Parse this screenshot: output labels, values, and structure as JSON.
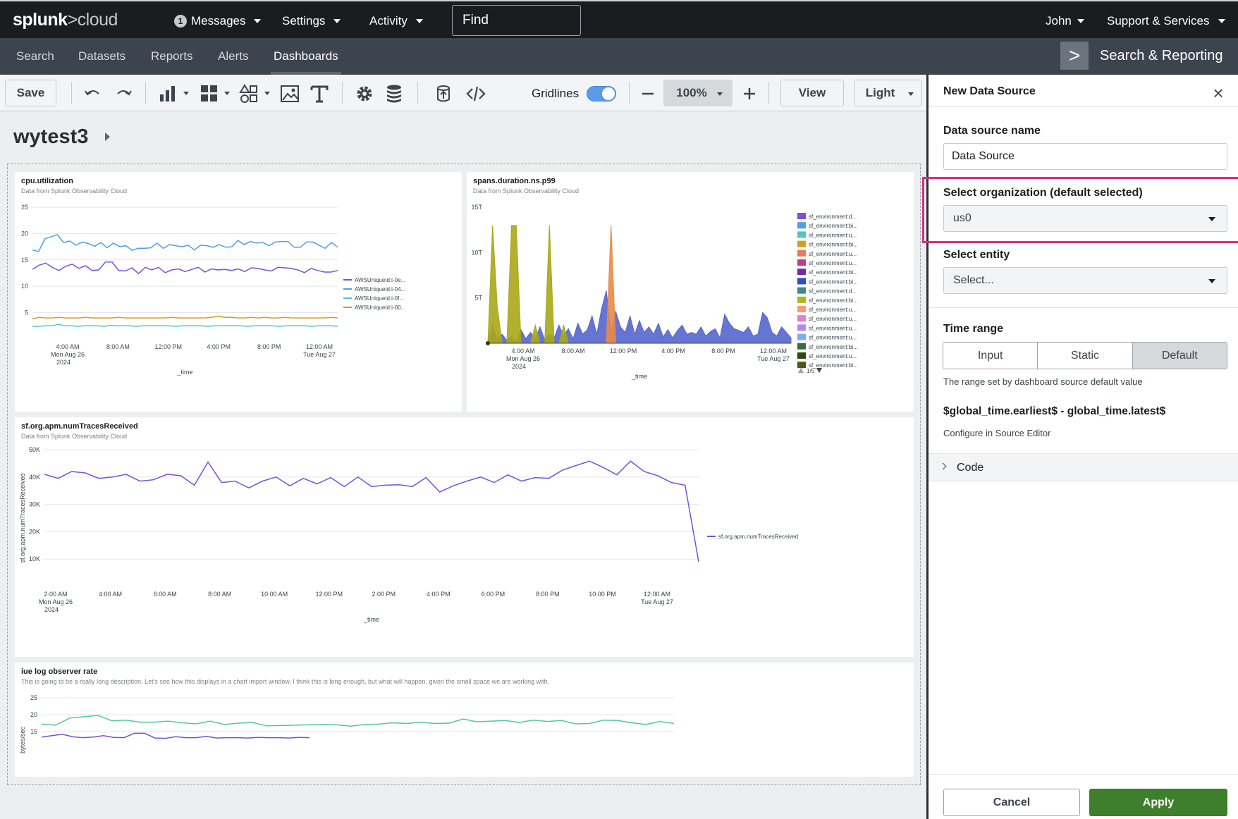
{
  "header": {
    "logo_bold": "splunk",
    "logo_rest": ">cloud",
    "messages_badge": "1",
    "messages": "Messages",
    "settings": "Settings",
    "activity": "Activity",
    "find_placeholder": "Find",
    "user": "John",
    "support": "Support & Services"
  },
  "appbar": {
    "items": [
      {
        "label": "Search"
      },
      {
        "label": "Datasets"
      },
      {
        "label": "Reports"
      },
      {
        "label": "Alerts"
      },
      {
        "label": "Dashboards"
      }
    ],
    "active": "Dashboards",
    "app_icon_glyph": ">",
    "app_name": "Search & Reporting"
  },
  "toolbar": {
    "save": "Save",
    "gridlines_label": "Gridlines",
    "gridlines_on": true,
    "zoom": "100%",
    "view": "View",
    "theme": "Light",
    "icons": [
      "undo-icon",
      "redo-icon",
      "chart-icon",
      "grid-layout-icon",
      "shapes-icon",
      "image-icon",
      "text-icon",
      "gear-icon",
      "database-icon",
      "data-source-icon",
      "code-icon",
      "minus-icon",
      "plus-icon"
    ]
  },
  "dashboard": {
    "title": "wytest3"
  },
  "chart_data": [
    {
      "type": "line",
      "title": "cpu.utilization",
      "subtitle": "Data from Splunk Observability Cloud",
      "xlabel": "_time",
      "ylabel": "",
      "ylim": [
        0,
        25
      ],
      "yticks": [
        "25",
        "20",
        "15",
        "10",
        "5"
      ],
      "xticks": [
        {
          "l1": "4:00 AM",
          "l2": "Mon Aug 26",
          "l3": "2024"
        },
        {
          "l1": "8:00 AM"
        },
        {
          "l1": "12:00 PM"
        },
        {
          "l1": "4:00 PM"
        },
        {
          "l1": "8:00 PM"
        },
        {
          "l1": "12:00 AM",
          "l2": "Tue Aug 27"
        }
      ],
      "series": [
        {
          "name": "AWSUniqueId:i-0e...",
          "color": "#7b4fd8",
          "values": [
            13.2,
            14,
            14.4,
            13.6,
            13,
            13.8,
            14.2,
            13.4,
            13.9,
            13,
            13.1,
            14.6,
            14.6,
            13,
            12.9,
            13.5,
            12.4,
            13.6,
            13.1,
            13.6,
            12.6,
            13.1,
            13.3,
            12.8,
            13.2,
            13.6,
            12.7,
            13.3,
            13.1,
            13.2,
            13,
            13.3,
            12.8,
            13.5,
            13.4,
            13.1,
            12.9,
            13.6,
            13.5,
            13.4,
            13.1,
            12.6,
            13.4,
            13,
            12.7,
            12.7,
            13
          ]
        },
        {
          "name": "AWSUniqueId:i-04...",
          "color": "#4e9fe6",
          "values": [
            16.9,
            16.6,
            19,
            19.4,
            19.8,
            18.3,
            18.6,
            17.8,
            18.4,
            18.1,
            17.6,
            18.3,
            17.3,
            18.2,
            17.5,
            17.7,
            16.8,
            17.2,
            17.2,
            17.3,
            18.2,
            17.2,
            17.9,
            17.7,
            17.5,
            17.8,
            16.9,
            17.8,
            17.7,
            17.4,
            17.9,
            17.4,
            17.5,
            18.7,
            17.9,
            18.5,
            18.2,
            18.3,
            17.7,
            18.4,
            18.5,
            18.5,
            17.4,
            17.4,
            18.4,
            18.4,
            17.8,
            17.2,
            18.3,
            17.4
          ]
        },
        {
          "name": "AWSUniqueId:i-0f...",
          "color": "#4ec9c2",
          "values": [
            2.4,
            2.4,
            2.5,
            2.5,
            2.8,
            2.5,
            2.5,
            2.4,
            2.5,
            2.5,
            2.5,
            2.4,
            2.6,
            2.5,
            2.5,
            2.5,
            2.4,
            2.5,
            2.5,
            2.5,
            2.5,
            2.5,
            2.4,
            2.5,
            2.5,
            2.5,
            2.5,
            2.4,
            2.5,
            2.5,
            2.5,
            2.5,
            2.5,
            2.4,
            2.5,
            2.5,
            2.5,
            2.5,
            2.4,
            2.5,
            2.5,
            2.5,
            2.5,
            2.4,
            2.5,
            2.5,
            2.5,
            2.4
          ]
        },
        {
          "name": "AWSUniqueId:i-00...",
          "color": "#d4a017",
          "values": [
            3.8,
            4.1,
            4,
            4,
            4.1,
            4,
            4,
            4,
            4.1,
            4,
            4,
            4,
            4,
            4.1,
            4,
            4,
            4,
            4,
            4,
            4,
            4,
            4.1,
            4,
            4,
            4,
            4,
            4,
            4.1,
            4.3,
            4.1,
            4.1,
            4,
            4,
            4.1,
            4,
            4.1,
            4,
            4,
            4.1,
            4,
            4,
            4,
            4,
            4,
            4,
            4.1,
            4
          ]
        }
      ]
    },
    {
      "type": "area",
      "title": "spans.duration.ns.p99",
      "subtitle": "Data from Splunk Observability Cloud",
      "xlabel": "_time",
      "ylim": [
        0,
        15
      ],
      "yticks": [
        "15T",
        "10T",
        "5T"
      ],
      "xticks": [
        {
          "l1": "4:00 AM",
          "l2": "Mon Aug 26",
          "l3": "2024"
        },
        {
          "l1": "8:00 AM"
        },
        {
          "l1": "12:00 PM"
        },
        {
          "l1": "4:00 PM"
        },
        {
          "l1": "8:00 PM"
        },
        {
          "l1": "12:00 AM",
          "l2": "Tue Aug 27"
        }
      ],
      "legend": [
        {
          "name": "sf_environment:d...",
          "color": "#7b4fd8"
        },
        {
          "name": "sf_environment:bi...",
          "color": "#4e9fe6"
        },
        {
          "name": "sf_environment:u...",
          "color": "#4ec9c2"
        },
        {
          "name": "sf_environment:bi...",
          "color": "#d4a017"
        },
        {
          "name": "sf_environment:u...",
          "color": "#e87a5a"
        },
        {
          "name": "sf_environment:u...",
          "color": "#c03d8a"
        },
        {
          "name": "sf_environment:bi...",
          "color": "#6a2fa0"
        },
        {
          "name": "sf_environment:bi...",
          "color": "#2e4fc0"
        },
        {
          "name": "sf_environment:d...",
          "color": "#3a8a8a"
        },
        {
          "name": "sf_environment:bi...",
          "color": "#a8b820"
        },
        {
          "name": "sf_environment:u...",
          "color": "#f0a070"
        },
        {
          "name": "sf_environment:u...",
          "color": "#e87ad0"
        },
        {
          "name": "sf_environment:u...",
          "color": "#b08ae8"
        },
        {
          "name": "sf_environment:u...",
          "color": "#7ab0f0"
        },
        {
          "name": "sf_environment:bi...",
          "color": "#3c6a3c"
        },
        {
          "name": "sf_environment:u...",
          "color": "#284a10"
        },
        {
          "name": "sf_environment:bi...",
          "color": "#4a5a10"
        }
      ],
      "legend_page": "1/5",
      "series": [
        {
          "name": "blue",
          "color": "#5566cc",
          "values": [
            0,
            2,
            0.5,
            1,
            0.3,
            0.8,
            0.2,
            1.5,
            0.5,
            1.2,
            0.5,
            1.8,
            0.4,
            1,
            0.6,
            2,
            0.8,
            1.6,
            0.5,
            2.2,
            1,
            1.5,
            3,
            1,
            3.8,
            5.8,
            1.2,
            3.5,
            1.8,
            1.2,
            3,
            1,
            2.5,
            1.2,
            1.8,
            1,
            2.2,
            0.7,
            1.5,
            0.6,
            1.4,
            2,
            1,
            1.2,
            1,
            1.8,
            0.8,
            1.3,
            1.6,
            0.6,
            3.2,
            2.2,
            1.6,
            1.4,
            1.2,
            1.8,
            0.8,
            1,
            3.4,
            2.8,
            1.2,
            0.8,
            1.8,
            1.2,
            0.6
          ]
        },
        {
          "name": "olive",
          "color": "#a8a818",
          "values": [
            0,
            13,
            4,
            0,
            0,
            13,
            13,
            0,
            0,
            0,
            2,
            0,
            0,
            13,
            0,
            0,
            2,
            0,
            0,
            0,
            0,
            0,
            0,
            0,
            0,
            0,
            0,
            0,
            0,
            0,
            0,
            0,
            0,
            0,
            0,
            0,
            0,
            0,
            0,
            0,
            0,
            0,
            0,
            0,
            0,
            0,
            0,
            0,
            0,
            0,
            0,
            0,
            0,
            0,
            0,
            0,
            0,
            0,
            0,
            0,
            0,
            0,
            0,
            0,
            0
          ]
        },
        {
          "name": "orange",
          "color": "#e88a4a",
          "values": [
            0,
            0,
            0,
            0,
            0,
            0,
            0,
            0,
            0,
            0,
            0,
            0,
            0,
            0,
            0,
            0,
            0,
            0,
            0,
            0,
            0,
            0,
            0,
            0,
            0,
            0,
            13,
            0,
            0,
            0,
            0,
            0,
            0,
            0,
            0,
            0,
            0,
            0,
            0,
            0,
            0,
            0,
            0,
            0,
            0,
            0,
            0,
            0,
            0,
            0,
            0,
            0,
            0,
            0,
            0,
            0,
            0,
            0,
            0,
            0,
            0,
            0,
            0,
            0,
            0
          ]
        }
      ]
    },
    {
      "type": "line",
      "title": "sf.org.apm.numTracesReceived",
      "subtitle": "Data from Splunk Observability Cloud",
      "xlabel": "_time",
      "ylabel": "sf.org.apm.numTracesReceived",
      "ylim": [
        0,
        50
      ],
      "yticks": [
        "50K",
        "40K",
        "30K",
        "20K",
        "10K"
      ],
      "xticks": [
        {
          "l1": "2:00 AM",
          "l2": "Mon Aug 26",
          "l3": "2024"
        },
        {
          "l1": "4:00 AM"
        },
        {
          "l1": "6:00 AM"
        },
        {
          "l1": "8:00 AM"
        },
        {
          "l1": "10:00 AM"
        },
        {
          "l1": "12:00 PM"
        },
        {
          "l1": "2:00 PM"
        },
        {
          "l1": "4:00 PM"
        },
        {
          "l1": "6:00 PM"
        },
        {
          "l1": "8:00 PM"
        },
        {
          "l1": "10:00 PM"
        },
        {
          "l1": "12:00 AM",
          "l2": "Tue Aug 27"
        }
      ],
      "series": [
        {
          "name": "sf.org.apm.numTracesReceived",
          "color": "#7b4fd8",
          "values": [
            41,
            39.5,
            42,
            41.5,
            39.5,
            40,
            41,
            38.5,
            39,
            41,
            40.5,
            37,
            45.5,
            38,
            38.5,
            36,
            38.5,
            40,
            36.8,
            39.5,
            37.5,
            39.8,
            36.5,
            40,
            36.5,
            37,
            37.2,
            36.5,
            39.8,
            34.5,
            36.8,
            38.5,
            40,
            38,
            40.8,
            38.5,
            39.8,
            39.5,
            42.5,
            44.2,
            45.8,
            43.5,
            40.8,
            45.8,
            42,
            40.5,
            38,
            37,
            9
          ]
        }
      ]
    },
    {
      "type": "line",
      "title": "iue log observer rate",
      "subtitle": "This is going to be a really long description. Let's see how this displays in a chart import window. I think this is long enough, but what will happen, given the small space we are working with.",
      "ylabel": "bytes/sec",
      "ylim": [
        0,
        25
      ],
      "yticks": [
        "25",
        "20",
        "15"
      ],
      "series": [
        {
          "name": "green",
          "color": "#4ec9a2",
          "values": [
            17.2,
            16.9,
            19,
            19.4,
            19.8,
            18.2,
            18.4,
            17.8,
            17.8,
            18.1,
            17.6,
            17.3,
            18.1,
            17.1,
            17.5,
            17.7,
            16.7,
            16.8,
            16.9,
            17,
            17.1,
            17,
            16.6,
            17.1,
            17.2,
            17.6,
            17.4,
            17.8,
            17.4,
            17.5,
            18.7,
            17.9,
            18.1,
            18.3,
            17.7,
            18.4,
            18,
            18.3,
            17.3,
            17.4,
            18.4,
            18.3,
            17.6,
            17.1,
            18,
            17.4
          ]
        },
        {
          "name": "purple",
          "color": "#7b4fd8",
          "values": [
            13.4,
            13.8,
            14.2,
            13.5,
            13.2,
            13.4,
            13.8,
            13.3,
            13.2,
            14.5,
            14.5,
            13.1,
            13,
            13.5,
            13.2,
            13.2,
            13.6,
            13.1,
            13.2,
            13.2,
            13.1,
            13.3,
            13.2,
            13.2,
            13.1,
            13.3,
            13.2
          ]
        }
      ]
    }
  ],
  "side_panel": {
    "title": "New Data Source",
    "name_label": "Data source name",
    "name_value": "Data Source",
    "org_label": "Select organization (default selected)",
    "org_value": "us0",
    "entity_label": "Select entity",
    "entity_placeholder": "Select...",
    "time_label": "Time range",
    "time_options": [
      "Input",
      "Static",
      "Default"
    ],
    "time_selected": "Default",
    "time_hint": "The range set by dashboard source default value",
    "formula": "$global_time.earliest$ - global_time.latest$",
    "configure_hint": "Configure in Source Editor",
    "code_label": "Code",
    "cancel": "Cancel",
    "apply": "Apply",
    "highlight_color": "#d62f83"
  }
}
